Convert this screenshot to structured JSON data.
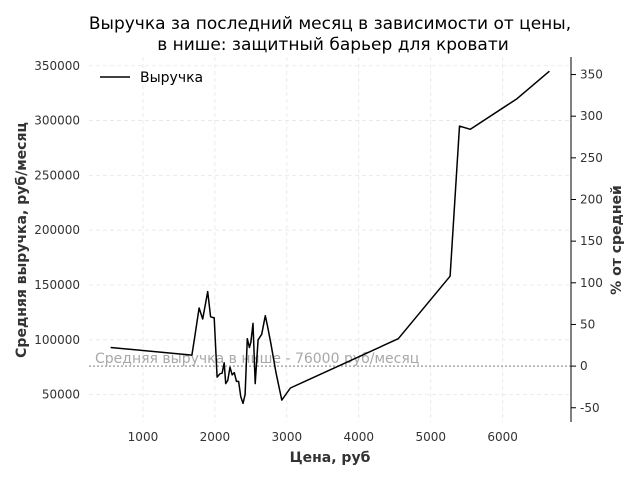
{
  "chart_data": {
    "type": "line",
    "title_lines": [
      "Выручка за последний месяц в зависимости от цены,",
      "в нише: защитный барьер для кровати"
    ],
    "xlabel": "Цена, руб",
    "ylabel": "Средняя выручка, руб/месяц",
    "y2label": "% от средней",
    "xlim": [
      250,
      6950
    ],
    "ylim": [
      25000,
      358000
    ],
    "y2lim": [
      -67.1,
      371.05
    ],
    "xticks": [
      1000,
      2000,
      3000,
      4000,
      5000,
      6000
    ],
    "yticks": [
      50000,
      100000,
      150000,
      200000,
      250000,
      300000,
      350000
    ],
    "y2ticks": [
      -50,
      0,
      50,
      100,
      150,
      200,
      250,
      300,
      350
    ],
    "grid": true,
    "legend_position": "top-left",
    "series": [
      {
        "name": "Выручка",
        "color": "#000000",
        "x": [
          550,
          1680,
          1720,
          1780,
          1830,
          1900,
          1940,
          1990,
          2030,
          2070,
          2100,
          2130,
          2150,
          2180,
          2210,
          2240,
          2270,
          2300,
          2330,
          2360,
          2390,
          2420,
          2450,
          2480,
          2500,
          2530,
          2560,
          2600,
          2650,
          2700,
          2730,
          2780,
          2850,
          2930,
          3050,
          4550,
          5270,
          5400,
          5550,
          6200,
          6650
        ],
        "y": [
          93000,
          86000,
          103000,
          129000,
          119000,
          144000,
          121000,
          120000,
          66000,
          69000,
          69500,
          79000,
          60000,
          63000,
          75000,
          68000,
          70000,
          62000,
          62000,
          48000,
          42000,
          50000,
          101000,
          93000,
          98000,
          115000,
          60000,
          100000,
          105000,
          122000,
          113000,
          96000,
          70000,
          45000,
          56000,
          101000,
          158000,
          295000,
          292000,
          320000,
          345000
        ]
      }
    ],
    "reference_line": {
      "value": 76000,
      "label": "Средняя выручка в нише - 76000 руб/месяц",
      "color": "#a8a8a8"
    }
  }
}
